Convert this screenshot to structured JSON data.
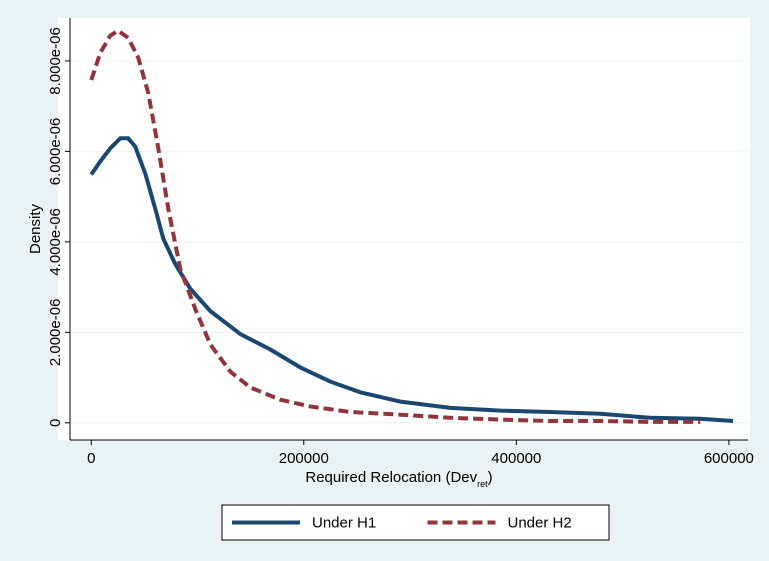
{
  "chart_data": {
    "type": "line",
    "ylabel": "Density",
    "xlabel_parts": [
      "Required Relocation (Dev",
      "ret",
      ")"
    ],
    "xlim": [
      -20000,
      618000
    ],
    "ylim": [
      -3.8e-07,
      8.95e-06
    ],
    "xticks": [
      0,
      200000,
      400000,
      600000
    ],
    "yticks": [
      0,
      {
        "value": 2e-06,
        "label": "2.000e-06"
      },
      {
        "value": 4e-06,
        "label": "4.000e-06"
      },
      {
        "value": 6e-06,
        "label": "6.000e-06"
      },
      {
        "value": 8e-06,
        "label": "8.000e-06"
      }
    ],
    "grid": true,
    "legend": "bottom",
    "series": [
      {
        "name": "Under H1",
        "color": "#1a476f",
        "dash": "solid",
        "x": [
          0,
          8500,
          17900,
          27300,
          34800,
          41400,
          50900,
          60300,
          67800,
          79100,
          93300,
          112100,
          140400,
          168600,
          197000,
          225200,
          253600,
          291000,
          338000,
          385000,
          432000,
          479000,
          526000,
          573000,
          604000
        ],
        "values": [
          5.49e-06,
          5.78e-06,
          6.07e-06,
          6.29e-06,
          6.29e-06,
          6.11e-06,
          5.51e-06,
          4.73e-06,
          4.07e-06,
          3.51e-06,
          2.96e-06,
          2.47e-06,
          1.96e-06,
          1.62e-06,
          1.22e-06,
          9.1e-07,
          6.7e-07,
          4.7e-07,
          3.3e-07,
          2.7e-07,
          2.4e-07,
          2e-07,
          1.1e-07,
          9e-08,
          4e-08
        ]
      },
      {
        "name": "Under H2",
        "color": "#90353b",
        "dash": "dashed",
        "x": [
          0,
          8500,
          17900,
          25400,
          34800,
          44300,
          53700,
          63100,
          72500,
          83800,
          98000,
          112100,
          130900,
          149800,
          178000,
          206300,
          244000,
          291000,
          338000,
          385000,
          432000,
          479000,
          526000,
          573000
        ],
        "values": [
          7.58e-06,
          8.18e-06,
          8.56e-06,
          8.67e-06,
          8.51e-06,
          8.07e-06,
          7.29e-06,
          6.07e-06,
          4.73e-06,
          3.4e-06,
          2.51e-06,
          1.73e-06,
          1.13e-06,
          7.8e-07,
          5.1e-07,
          3.6e-07,
          2.4e-07,
          1.8e-07,
          1.1e-07,
          7e-08,
          4e-08,
          4e-08,
          2e-08,
          2e-08
        ]
      }
    ]
  }
}
